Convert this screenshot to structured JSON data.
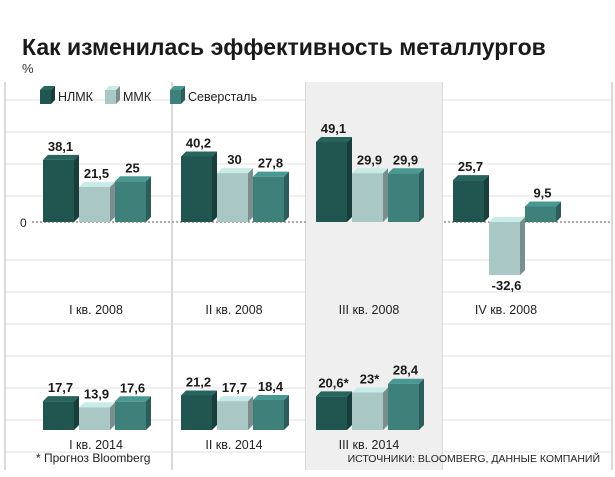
{
  "chart_data": {
    "type": "bar",
    "title": "Как изменилась эффективность металлургов",
    "unit": "%",
    "legend": [
      "НЛМК",
      "ММК",
      "Северсталь"
    ],
    "colors": [
      "#215550",
      "#a9c7c4",
      "#3e817b"
    ],
    "zero_label": "0",
    "panels": [
      {
        "categories": [
          "I кв. 2008",
          "II кв. 2008",
          "III кв. 2008",
          "IV кв. 2008"
        ],
        "series": [
          {
            "name": "НЛМК",
            "values": [
              38.1,
              40.2,
              49.1,
              25.7
            ],
            "labels": [
              "38,1",
              "40,2",
              "49,1",
              "25,7"
            ]
          },
          {
            "name": "ММК",
            "values": [
              21.5,
              30,
              29.9,
              -32.6
            ],
            "labels": [
              "21,5",
              "30",
              "29,9",
              "-32,6"
            ]
          },
          {
            "name": "Северсталь",
            "values": [
              25,
              27.8,
              29.9,
              9.5
            ],
            "labels": [
              "25",
              "27,8",
              "29,9",
              "9,5"
            ]
          }
        ]
      },
      {
        "categories": [
          "I кв. 2014",
          "II кв. 2014",
          "III кв. 2014"
        ],
        "series": [
          {
            "name": "НЛМК",
            "values": [
              17.7,
              21.2,
              20.6
            ],
            "labels": [
              "17,7",
              "21,2",
              "20,6*"
            ]
          },
          {
            "name": "ММК",
            "values": [
              13.9,
              17.7,
              23
            ],
            "labels": [
              "13,9",
              "17,7",
              "23*"
            ]
          },
          {
            "name": "Северсталь",
            "values": [
              17.6,
              18.4,
              28.4
            ],
            "labels": [
              "17,6",
              "18,4",
              "28,4"
            ]
          }
        ]
      }
    ],
    "highlighted_category": "III кв.",
    "footnote": "* Прогноз Bloomberg",
    "source": "ИСТОЧНИКИ: BLOOMBERG, ДАННЫЕ КОМПАНИЙ"
  }
}
